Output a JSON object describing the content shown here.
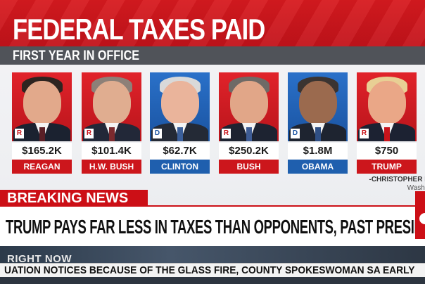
{
  "header": {
    "title": "FEDERAL TAXES PAID",
    "subtitle": "FIRST YEAR IN OFFICE"
  },
  "presidents": [
    {
      "name": "REAGAN",
      "amount": "$165.2K",
      "party": "R",
      "party_color": "#cc161c"
    },
    {
      "name": "H.W. BUSH",
      "amount": "$101.4K",
      "party": "R",
      "party_color": "#cc161c"
    },
    {
      "name": "CLINTON",
      "amount": "$62.7K",
      "party": "D",
      "party_color": "#1f5fae"
    },
    {
      "name": "BUSH",
      "amount": "$250.2K",
      "party": "R",
      "party_color": "#cc161c"
    },
    {
      "name": "OBAMA",
      "amount": "$1.8M",
      "party": "D",
      "party_color": "#1f5fae"
    },
    {
      "name": "TRUMP",
      "amount": "$750",
      "party": "R",
      "party_color": "#cc161c"
    }
  ],
  "credit": {
    "line1": "-CHRISTOPHER I",
    "line2": "Washi"
  },
  "breaking": {
    "label": "BREAKING NEWS",
    "headline": "TRUMP PAYS FAR LESS IN TAXES THAN OPPONENTS, PAST PRESIDENTS"
  },
  "rightnow": {
    "label": "RIGHT NOW"
  },
  "ticker": {
    "text": "UATION NOTICES BECAUSE OF THE GLASS FIRE, COUNTY SPOKESWOMAN SA EARLY"
  },
  "colors": {
    "brand_red": "#cc0f16",
    "republican": "#cc161c",
    "democrat": "#1f5fae"
  }
}
